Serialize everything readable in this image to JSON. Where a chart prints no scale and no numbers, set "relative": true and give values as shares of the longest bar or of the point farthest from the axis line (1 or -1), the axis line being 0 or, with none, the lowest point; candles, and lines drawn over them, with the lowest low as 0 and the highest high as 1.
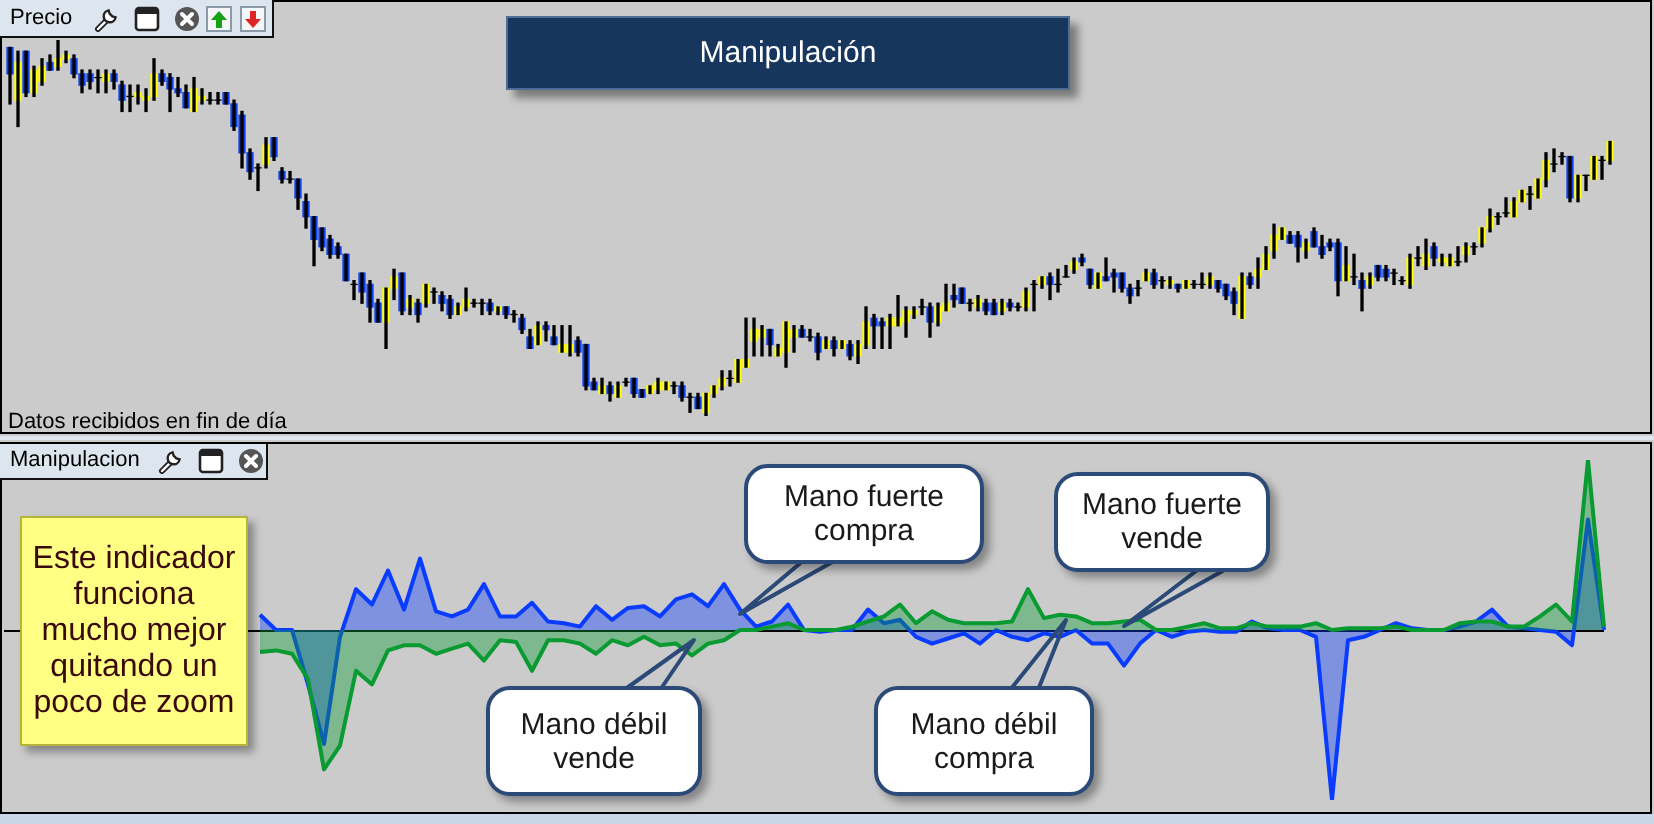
{
  "chart_data": [
    {
      "type": "candlestick",
      "title": "Manipulación",
      "subtitle": "Precio",
      "annotations": [
        "Datos recibidos en fin de día"
      ],
      "relative": true,
      "categories": [
        null,
        null,
        null,
        null,
        null,
        null,
        null,
        null,
        null,
        null,
        null,
        null,
        null,
        null,
        null,
        null,
        null,
        null,
        null,
        null,
        null,
        null,
        null,
        null,
        null,
        null,
        null,
        null,
        null,
        null,
        null,
        null,
        null,
        null,
        null,
        null,
        null,
        null,
        null,
        null,
        null,
        null,
        null,
        null,
        null,
        null,
        null,
        null,
        null,
        null,
        null,
        null,
        null,
        null,
        null,
        null,
        null,
        null,
        null,
        null,
        null,
        null,
        null,
        null,
        null,
        null,
        null,
        null,
        null,
        null,
        null,
        null,
        null,
        null,
        null,
        null,
        null,
        null,
        null,
        null,
        null,
        null,
        null,
        null,
        null,
        null,
        null,
        null,
        null,
        null,
        null,
        null,
        null,
        null,
        null,
        null,
        null,
        null,
        null,
        null,
        null,
        null,
        null,
        null,
        null,
        null,
        null,
        null,
        null,
        null,
        null,
        null,
        null,
        null,
        null,
        null,
        null,
        null,
        null,
        null,
        null,
        null,
        null,
        null,
        null,
        null,
        null,
        null,
        null,
        null,
        null,
        null,
        null,
        null,
        null,
        null,
        null,
        null,
        null,
        null,
        null,
        null,
        null,
        null,
        null,
        null,
        null,
        null,
        null,
        null,
        null,
        null,
        null,
        null,
        null,
        null,
        null,
        null,
        null,
        null,
        null,
        null,
        null,
        null,
        null,
        null,
        null,
        null,
        null,
        null,
        null,
        null,
        null,
        null,
        null,
        null,
        null,
        null,
        null,
        null,
        null,
        null,
        null,
        null,
        null,
        null,
        null,
        null,
        null,
        null,
        null,
        null,
        null,
        null,
        null,
        null,
        null,
        null,
        null,
        null,
        null
      ],
      "ohlc": [
        [
          0.98,
          0.98,
          0.83,
          0.91
        ],
        [
          0.84,
          0.97,
          0.77,
          0.94
        ],
        [
          0.97,
          0.97,
          0.85,
          0.86
        ],
        [
          0.86,
          0.93,
          0.85,
          0.92
        ],
        [
          0.89,
          0.95,
          0.88,
          0.93
        ],
        [
          0.94,
          0.96,
          0.92,
          0.92
        ],
        [
          0.93,
          1,
          0.92,
          0.95
        ],
        [
          0.95,
          0.97,
          0.94,
          0.96
        ],
        [
          0.95,
          0.96,
          0.9,
          0.91
        ],
        [
          0.91,
          0.92,
          0.86,
          0.88
        ],
        [
          0.91,
          0.92,
          0.87,
          0.89
        ],
        [
          0.9,
          0.92,
          0.86,
          0.9
        ],
        [
          0.89,
          0.92,
          0.86,
          0.91
        ],
        [
          0.91,
          0.92,
          0.87,
          0.89
        ],
        [
          0.88,
          0.89,
          0.81,
          0.84
        ],
        [
          0.85,
          0.88,
          0.81,
          0.85
        ],
        [
          0.85,
          0.88,
          0.83,
          0.86
        ],
        [
          0.84,
          0.87,
          0.81,
          0.85
        ],
        [
          0.85,
          0.95,
          0.84,
          0.91
        ],
        [
          0.91,
          0.92,
          0.88,
          0.89
        ],
        [
          0.9,
          0.91,
          0.81,
          0.87
        ],
        [
          0.87,
          0.9,
          0.85,
          0.86
        ],
        [
          0.86,
          0.88,
          0.82,
          0.82
        ],
        [
          0.81,
          0.9,
          0.81,
          0.87
        ],
        [
          0.84,
          0.87,
          0.83,
          0.85
        ],
        [
          0.84,
          0.86,
          0.83,
          0.84
        ],
        [
          0.84,
          0.86,
          0.83,
          0.84
        ],
        [
          0.86,
          0.86,
          0.83,
          0.83
        ],
        [
          0.83,
          0.84,
          0.76,
          0.77
        ],
        [
          0.8,
          0.81,
          0.66,
          0.7
        ],
        [
          0.7,
          0.71,
          0.63,
          0.65
        ],
        [
          0.66,
          0.67,
          0.6,
          0.66
        ],
        [
          0.67,
          0.74,
          0.66,
          0.72
        ],
        [
          0.74,
          0.74,
          0.68,
          0.69
        ],
        [
          0.65,
          0.66,
          0.62,
          0.63
        ],
        [
          0.63,
          0.65,
          0.62,
          0.63
        ],
        [
          0.63,
          0.63,
          0.55,
          0.58
        ],
        [
          0.57,
          0.59,
          0.5,
          0.53
        ],
        [
          0.53,
          0.53,
          0.4,
          0.47
        ],
        [
          0.5,
          0.5,
          0.44,
          0.45
        ],
        [
          0.47,
          0.48,
          0.42,
          0.43
        ],
        [
          0.45,
          0.46,
          0.42,
          0.43
        ],
        [
          0.43,
          0.43,
          0.36,
          0.36
        ],
        [
          0.35,
          0.36,
          0.31,
          0.35
        ],
        [
          0.38,
          0.38,
          0.3,
          0.33
        ],
        [
          0.35,
          0.36,
          0.25,
          0.29
        ],
        [
          0.3,
          0.31,
          0.25,
          0.25
        ],
        [
          0.25,
          0.34,
          0.18,
          0.34
        ],
        [
          0.34,
          0.39,
          0.31,
          0.37
        ],
        [
          0.38,
          0.38,
          0.27,
          0.28
        ],
        [
          0.29,
          0.32,
          0.27,
          0.31
        ],
        [
          0.3,
          0.31,
          0.25,
          0.27
        ],
        [
          0.3,
          0.35,
          0.29,
          0.35
        ],
        [
          0.33,
          0.34,
          0.3,
          0.33
        ],
        [
          0.32,
          0.33,
          0.28,
          0.3
        ],
        [
          0.31,
          0.32,
          0.26,
          0.27
        ],
        [
          0.27,
          0.3,
          0.27,
          0.29
        ],
        [
          0.29,
          0.34,
          0.28,
          0.31
        ],
        [
          0.3,
          0.31,
          0.29,
          0.3
        ],
        [
          0.3,
          0.31,
          0.27,
          0.3
        ],
        [
          0.3,
          0.31,
          0.27,
          0.28
        ],
        [
          0.28,
          0.29,
          0.27,
          0.29
        ],
        [
          0.29,
          0.29,
          0.26,
          0.27
        ],
        [
          0.27,
          0.28,
          0.25,
          0.27
        ],
        [
          0.26,
          0.27,
          0.22,
          0.23
        ],
        [
          0.21,
          0.23,
          0.18,
          0.18
        ],
        [
          0.19,
          0.25,
          0.19,
          0.24
        ],
        [
          0.24,
          0.25,
          0.2,
          0.23
        ],
        [
          0.21,
          0.24,
          0.19,
          0.19
        ],
        [
          0.17,
          0.24,
          0.17,
          0.19
        ],
        [
          0.17,
          0.24,
          0.16,
          0.19
        ],
        [
          0.2,
          0.21,
          0.16,
          0.17
        ],
        [
          0.19,
          0.19,
          0.07,
          0.08
        ],
        [
          0.09,
          0.1,
          0.07,
          0.07
        ],
        [
          0.06,
          0.1,
          0.06,
          0.08
        ],
        [
          0.08,
          0.09,
          0.04,
          0.06
        ],
        [
          0.05,
          0.09,
          0.05,
          0.08
        ],
        [
          0.09,
          0.1,
          0.08,
          0.09
        ],
        [
          0.1,
          0.1,
          0.05,
          0.06
        ],
        [
          0.07,
          0.07,
          0.05,
          0.05
        ],
        [
          0.06,
          0.08,
          0.06,
          0.08
        ],
        [
          0.07,
          0.1,
          0.06,
          0.09
        ],
        [
          0.07,
          0.09,
          0.07,
          0.09
        ],
        [
          0.08,
          0.09,
          0.06,
          0.08
        ],
        [
          0.08,
          0.09,
          0.04,
          0.05
        ],
        [
          0.05,
          0.06,
          0.01,
          0.05
        ],
        [
          0.05,
          0.06,
          0.02,
          0.02
        ],
        [
          0.01,
          0.06,
          0,
          0.06
        ],
        [
          0.06,
          0.08,
          0.05,
          0.08
        ],
        [
          0.08,
          0.12,
          0.07,
          0.1
        ],
        [
          0.1,
          0.12,
          0.08,
          0.1
        ],
        [
          0.09,
          0.15,
          0.09,
          0.15
        ],
        [
          0.13,
          0.26,
          0.13,
          0.15
        ],
        [
          0.2,
          0.26,
          0.16,
          0.23
        ],
        [
          0.21,
          0.24,
          0.16,
          0.23
        ],
        [
          0.23,
          0.23,
          0.16,
          0.19
        ],
        [
          0.16,
          0.19,
          0.16,
          0.18
        ],
        [
          0.17,
          0.25,
          0.13,
          0.25
        ],
        [
          0.21,
          0.24,
          0.17,
          0.23
        ],
        [
          0.23,
          0.24,
          0.21,
          0.21
        ],
        [
          0.21,
          0.23,
          0.2,
          0.21
        ],
        [
          0.21,
          0.22,
          0.15,
          0.17
        ],
        [
          0.18,
          0.21,
          0.18,
          0.2
        ],
        [
          0.2,
          0.21,
          0.16,
          0.18
        ],
        [
          0.18,
          0.2,
          0.18,
          0.2
        ],
        [
          0.19,
          0.2,
          0.15,
          0.16
        ],
        [
          0.16,
          0.2,
          0.14,
          0.19
        ],
        [
          0.19,
          0.29,
          0.18,
          0.25
        ],
        [
          0.26,
          0.27,
          0.18,
          0.24
        ],
        [
          0.25,
          0.26,
          0.18,
          0.24
        ],
        [
          0.24,
          0.27,
          0.18,
          0.26
        ],
        [
          0.24,
          0.32,
          0.24,
          0.26
        ],
        [
          0.25,
          0.29,
          0.21,
          0.28
        ],
        [
          0.27,
          0.29,
          0.26,
          0.28
        ],
        [
          0.29,
          0.31,
          0.27,
          0.29
        ],
        [
          0.29,
          0.3,
          0.21,
          0.25
        ],
        [
          0.25,
          0.3,
          0.24,
          0.29
        ],
        [
          0.28,
          0.35,
          0.28,
          0.3
        ],
        [
          0.32,
          0.35,
          0.29,
          0.31
        ],
        [
          0.34,
          0.34,
          0.3,
          0.3
        ],
        [
          0.3,
          0.31,
          0.28,
          0.3
        ],
        [
          0.29,
          0.32,
          0.28,
          0.31
        ],
        [
          0.3,
          0.31,
          0.27,
          0.28
        ],
        [
          0.3,
          0.31,
          0.27,
          0.27
        ],
        [
          0.28,
          0.31,
          0.27,
          0.3
        ],
        [
          0.3,
          0.31,
          0.28,
          0.29
        ],
        [
          0.29,
          0.3,
          0.28,
          0.29
        ],
        [
          0.29,
          0.34,
          0.28,
          0.33
        ],
        [
          0.35,
          0.36,
          0.28,
          0.35
        ],
        [
          0.35,
          0.37,
          0.34,
          0.37
        ],
        [
          0.37,
          0.38,
          0.31,
          0.35
        ],
        [
          0.35,
          0.39,
          0.33,
          0.35
        ],
        [
          0.37,
          0.4,
          0.37,
          0.37
        ],
        [
          0.39,
          0.42,
          0.38,
          0.41
        ],
        [
          0.42,
          0.43,
          0.4,
          0.41
        ],
        [
          0.39,
          0.39,
          0.34,
          0.35
        ],
        [
          0.34,
          0.38,
          0.34,
          0.38
        ],
        [
          0.37,
          0.42,
          0.36,
          0.36
        ],
        [
          0.38,
          0.39,
          0.33,
          0.37
        ],
        [
          0.38,
          0.38,
          0.33,
          0.34
        ],
        [
          0.34,
          0.35,
          0.3,
          0.32
        ],
        [
          0.34,
          0.36,
          0.32,
          0.34
        ],
        [
          0.36,
          0.39,
          0.36,
          0.38
        ],
        [
          0.38,
          0.39,
          0.34,
          0.35
        ],
        [
          0.36,
          0.37,
          0.34,
          0.36
        ],
        [
          0.35,
          0.37,
          0.34,
          0.36
        ],
        [
          0.35,
          0.35,
          0.33,
          0.34
        ],
        [
          0.34,
          0.36,
          0.34,
          0.36
        ],
        [
          0.35,
          0.36,
          0.34,
          0.35
        ],
        [
          0.35,
          0.38,
          0.34,
          0.35
        ],
        [
          0.35,
          0.38,
          0.34,
          0.37
        ],
        [
          0.36,
          0.36,
          0.33,
          0.34
        ],
        [
          0.35,
          0.35,
          0.31,
          0.32
        ],
        [
          0.33,
          0.34,
          0.27,
          0.3
        ],
        [
          0.26,
          0.38,
          0.26,
          0.37
        ],
        [
          0.37,
          0.38,
          0.34,
          0.35
        ],
        [
          0.37,
          0.42,
          0.34,
          0.39
        ],
        [
          0.39,
          0.45,
          0.39,
          0.43
        ],
        [
          0.44,
          0.51,
          0.42,
          0.48
        ],
        [
          0.47,
          0.5,
          0.47,
          0.5
        ],
        [
          0.48,
          0.49,
          0.46,
          0.46
        ],
        [
          0.48,
          0.49,
          0.41,
          0.45
        ],
        [
          0.44,
          0.47,
          0.42,
          0.46
        ],
        [
          0.49,
          0.5,
          0.45,
          0.45
        ],
        [
          0.45,
          0.48,
          0.42,
          0.43
        ],
        [
          0.46,
          0.47,
          0.44,
          0.45
        ],
        [
          0.46,
          0.47,
          0.32,
          0.36
        ],
        [
          0.36,
          0.45,
          0.36,
          0.4
        ],
        [
          0.37,
          0.43,
          0.35,
          0.37
        ],
        [
          0.36,
          0.38,
          0.28,
          0.34
        ],
        [
          0.35,
          0.38,
          0.34,
          0.37
        ],
        [
          0.4,
          0.4,
          0.36,
          0.37
        ],
        [
          0.39,
          0.4,
          0.36,
          0.37
        ],
        [
          0.38,
          0.39,
          0.35,
          0.38
        ],
        [
          0.36,
          0.37,
          0.35,
          0.36
        ],
        [
          0.35,
          0.43,
          0.34,
          0.42
        ],
        [
          0.42,
          0.45,
          0.4,
          0.42
        ],
        [
          0.4,
          0.47,
          0.39,
          0.43
        ],
        [
          0.45,
          0.46,
          0.4,
          0.42
        ],
        [
          0.41,
          0.43,
          0.4,
          0.42
        ],
        [
          0.4,
          0.43,
          0.4,
          0.42
        ],
        [
          0.41,
          0.45,
          0.4,
          0.41
        ],
        [
          0.43,
          0.46,
          0.41,
          0.45
        ],
        [
          0.45,
          0.46,
          0.43,
          0.45
        ],
        [
          0.46,
          0.5,
          0.45,
          0.5
        ],
        [
          0.5,
          0.55,
          0.49,
          0.53
        ],
        [
          0.53,
          0.54,
          0.51,
          0.53
        ],
        [
          0.54,
          0.58,
          0.53,
          0.54
        ],
        [
          0.53,
          0.58,
          0.53,
          0.57
        ],
        [
          0.57,
          0.6,
          0.57,
          0.6
        ],
        [
          0.59,
          0.61,
          0.55,
          0.59
        ],
        [
          0.58,
          0.63,
          0.58,
          0.63
        ],
        [
          0.63,
          0.7,
          0.61,
          0.68
        ],
        [
          0.67,
          0.71,
          0.65,
          0.67
        ],
        [
          0.69,
          0.7,
          0.67,
          0.69
        ],
        [
          0.69,
          0.69,
          0.57,
          0.58
        ],
        [
          0.58,
          0.64,
          0.57,
          0.64
        ],
        [
          0.64,
          0.64,
          0.6,
          0.64
        ],
        [
          0.63,
          0.69,
          0.63,
          0.69
        ],
        [
          0.68,
          0.69,
          0.63,
          0.68
        ],
        [
          0.68,
          0.73,
          0.67,
          0.73
        ]
      ],
      "colors": [
        "#1040e8",
        "#ffff00",
        "#1040e8",
        "#ffff00",
        "#ffff00",
        "#1040e8",
        "#ffff00",
        "#ffff00",
        "#1040e8",
        "#1040e8",
        "#1040e8",
        "#000000",
        "#ffff00",
        "#1040e8",
        "#1040e8",
        "#000000",
        "#ffff00",
        "#ffff00",
        "#ffff00",
        "#1040e8",
        "#1040e8",
        "#1040e8",
        "#1040e8",
        "#ffff00",
        "#ffff00",
        "#000000",
        "#000000",
        "#1040e8",
        "#1040e8",
        "#1040e8",
        "#1040e8",
        "#000000",
        "#ffff00",
        "#1040e8",
        "#1040e8",
        "#000000",
        "#1040e8",
        "#1040e8",
        "#1040e8",
        "#1040e8",
        "#1040e8",
        "#1040e8",
        "#1040e8",
        "#000000",
        "#1040e8",
        "#1040e8",
        "#1040e8",
        "#ffff00",
        "#ffff00",
        "#1040e8",
        "#ffff00",
        "#1040e8",
        "#ffff00",
        "#000000",
        "#1040e8",
        "#1040e8",
        "#ffff00",
        "#ffff00",
        "#000000",
        "#000000",
        "#1040e8",
        "#ffff00",
        "#1040e8",
        "#000000",
        "#1040e8",
        "#1040e8",
        "#ffff00",
        "#1040e8",
        "#1040e8",
        "#ffff00",
        "#ffff00",
        "#1040e8",
        "#1040e8",
        "#1040e8",
        "#ffff00",
        "#1040e8",
        "#ffff00",
        "#000000",
        "#1040e8",
        "#1040e8",
        "#ffff00",
        "#ffff00",
        "#ffff00",
        "#000000",
        "#1040e8",
        "#000000",
        "#1040e8",
        "#ffff00",
        "#ffff00",
        "#ffff00",
        "#000000",
        "#ffff00",
        "#ffff00",
        "#ffff00",
        "#ffff00",
        "#1040e8",
        "#ffff00",
        "#ffff00",
        "#ffff00",
        "#1040e8",
        "#000000",
        "#1040e8",
        "#ffff00",
        "#1040e8",
        "#ffff00",
        "#1040e8",
        "#ffff00",
        "#ffff00",
        "#1040e8",
        "#1040e8",
        "#ffff00",
        "#ffff00",
        "#ffff00",
        "#ffff00",
        "#000000",
        "#1040e8",
        "#ffff00",
        "#ffff00",
        "#1040e8",
        "#1040e8",
        "#000000",
        "#ffff00",
        "#1040e8",
        "#1040e8",
        "#ffff00",
        "#1040e8",
        "#000000",
        "#ffff00",
        "#000000",
        "#ffff00",
        "#1040e8",
        "#000000",
        "#000000",
        "#ffff00",
        "#1040e8",
        "#1040e8",
        "#ffff00",
        "#1040e8",
        "#1040e8",
        "#1040e8",
        "#1040e8",
        "#000000",
        "#ffff00",
        "#1040e8",
        "#000000",
        "#ffff00",
        "#1040e8",
        "#ffff00",
        "#000000",
        "#000000",
        "#ffff00",
        "#1040e8",
        "#1040e8",
        "#1040e8",
        "#ffff00",
        "#1040e8",
        "#ffff00",
        "#ffff00",
        "#ffff00",
        "#ffff00",
        "#1040e8",
        "#1040e8",
        "#ffff00",
        "#1040e8",
        "#1040e8",
        "#1040e8",
        "#1040e8",
        "#ffff00",
        "#000000",
        "#1040e8",
        "#ffff00",
        "#1040e8",
        "#1040e8",
        "#000000",
        "#000000",
        "#ffff00",
        "#000000",
        "#ffff00",
        "#1040e8",
        "#ffff00",
        "#ffff00",
        "#000000",
        "#ffff00",
        "#000000",
        "#ffff00",
        "#ffff00",
        "#000000",
        "#000000",
        "#ffff00",
        "#ffff00",
        "#000000",
        "#ffff00",
        "#ffff00",
        "#000000",
        "#000000",
        "#1040e8",
        "#ffff00",
        "#000000",
        "#ffff00",
        "#000000",
        "#ffff00"
      ]
    },
    {
      "type": "area",
      "subtitle": "Manipulacion",
      "annotations": [
        "Este indicador funciona mucho mejor quitando un poco de zoom",
        "Mano fuerte compra",
        "Mano débil vende",
        "Mano débil compra",
        "Mano fuerte vende"
      ],
      "relative": true,
      "categories": [
        null,
        null,
        null,
        null,
        null,
        null,
        null,
        null,
        null,
        null,
        null,
        null,
        null,
        null,
        null,
        null,
        null,
        null,
        null,
        null,
        null,
        null,
        null,
        null,
        null,
        null,
        null,
        null,
        null,
        null,
        null,
        null,
        null,
        null,
        null,
        null,
        null,
        null,
        null,
        null,
        null,
        null,
        null,
        null,
        null,
        null,
        null,
        null,
        null,
        null,
        null,
        null,
        null,
        null,
        null,
        null,
        null,
        null,
        null,
        null,
        null,
        null,
        null,
        null,
        null,
        null,
        null,
        null,
        null,
        null,
        null,
        null,
        null,
        null,
        null,
        null,
        null,
        null,
        null,
        null,
        null,
        null,
        null,
        null,
        null,
        null,
        null,
        null,
        null,
        null,
        null,
        null,
        null,
        null,
        null,
        null,
        null,
        null,
        null,
        null,
        null
      ],
      "series": [
        {
          "color": "#0a3cff",
          "values": [
            null,
            null,
            null,
            null,
            null,
            null,
            null,
            null,
            null,
            null,
            null,
            null,
            null,
            null,
            null,
            null,
            0.09,
            0,
            0,
            -0.32,
            -0.67,
            -0.04,
            0.24,
            0.15,
            0.35,
            0.12,
            0.42,
            0.11,
            0.08,
            0.12,
            0.27,
            0.08,
            0.08,
            0.16,
            0.05,
            0.04,
            0.02,
            0.14,
            0.06,
            0.13,
            0.14,
            0.08,
            0.18,
            0.21,
            0.14,
            0.27,
            0.12,
            0.02,
            0.05,
            0.15,
            0,
            -0.01,
            0,
            0,
            0.12,
            0.04,
            0.06,
            -0.04,
            -0.08,
            -0.05,
            -0.02,
            -0.08,
            0,
            -0.04,
            -0.06,
            -0.02,
            -0.04,
            0,
            -0.08,
            -0.08,
            -0.21,
            -0.08,
            0,
            -0.04,
            -0.01,
            0,
            -0.01,
            -0.01,
            0.05,
            0.01,
            0,
            0,
            -0.04,
            -1,
            -0.06,
            -0.04,
            0,
            0.04,
            0.01,
            0,
            0,
            0.02,
            0.05,
            0.12,
            0.02,
            0.01,
            0,
            -0.01,
            -0.09,
            0.65,
            0
          ]
        },
        {
          "color": "#0a9a32",
          "values": [
            null,
            null,
            null,
            null,
            null,
            null,
            null,
            null,
            null,
            null,
            null,
            null,
            null,
            null,
            null,
            null,
            -0.13,
            -0.12,
            -0.14,
            -0.29,
            -0.82,
            -0.68,
            -0.24,
            -0.32,
            -0.12,
            -0.09,
            -0.09,
            -0.14,
            -0.11,
            -0.08,
            -0.18,
            -0.06,
            -0.07,
            -0.24,
            -0.06,
            -0.06,
            -0.08,
            -0.14,
            -0.06,
            -0.09,
            -0.04,
            -0.09,
            -0.08,
            -0.15,
            -0.08,
            -0.06,
            0,
            0,
            0.02,
            0.04,
            0,
            0,
            0,
            0.02,
            0.05,
            0.08,
            0.15,
            0.04,
            0.11,
            0.06,
            0.04,
            0.04,
            0.04,
            0.05,
            0.24,
            0.07,
            0.09,
            0.08,
            0.04,
            0.04,
            0.05,
            0.06,
            0,
            0,
            0.02,
            0.04,
            0.01,
            0.01,
            0.04,
            0.02,
            0.02,
            0.02,
            0.04,
            0,
            0.01,
            0.01,
            0.01,
            0.02,
            0,
            0,
            0,
            0.04,
            0.05,
            0.05,
            0.02,
            0.02,
            0.08,
            0.15,
            0.05,
            1,
            0.02
          ]
        }
      ]
    }
  ]
}
